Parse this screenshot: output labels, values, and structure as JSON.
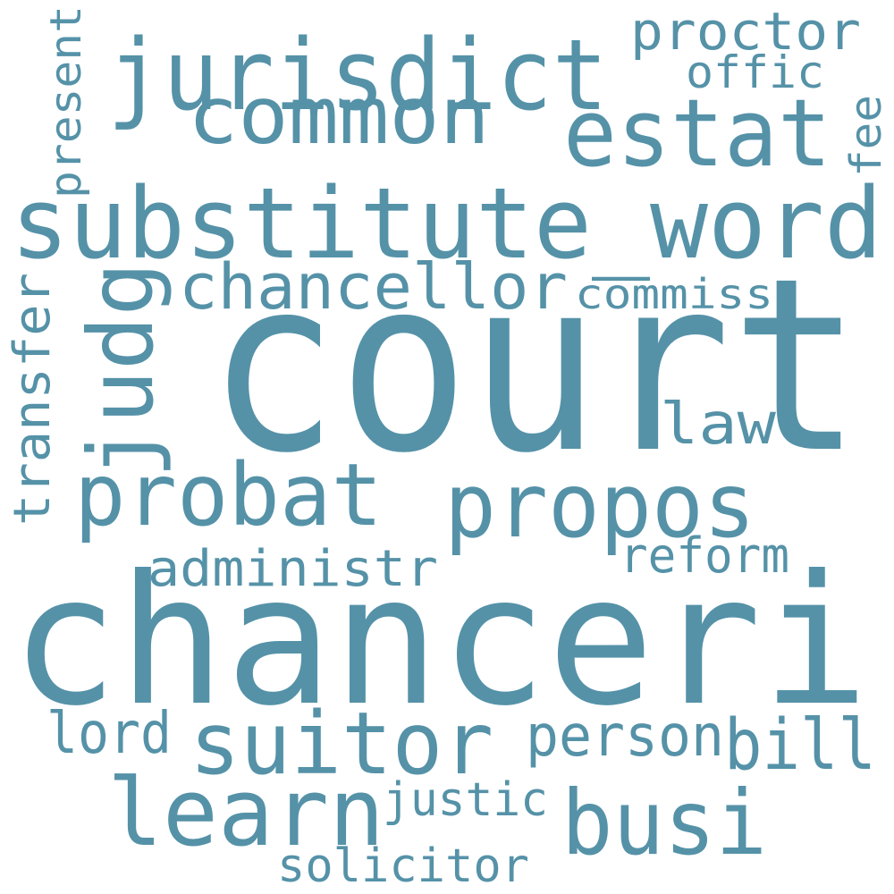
{
  "word_cloud": {
    "text_color": "#5592a8",
    "background_color": "#ffffff",
    "words": [
      "court",
      "chanceri",
      "substitute_word",
      "jurisdict",
      "common",
      "estat",
      "proctor",
      "offic",
      "fee",
      "present",
      "chancellor",
      "commiss",
      "judg",
      "transfer",
      "law",
      "probat",
      "propos",
      "administr",
      "reform",
      "lord",
      "suitor",
      "person",
      "bill",
      "learn",
      "busi",
      "justic",
      "solicitor"
    ]
  }
}
